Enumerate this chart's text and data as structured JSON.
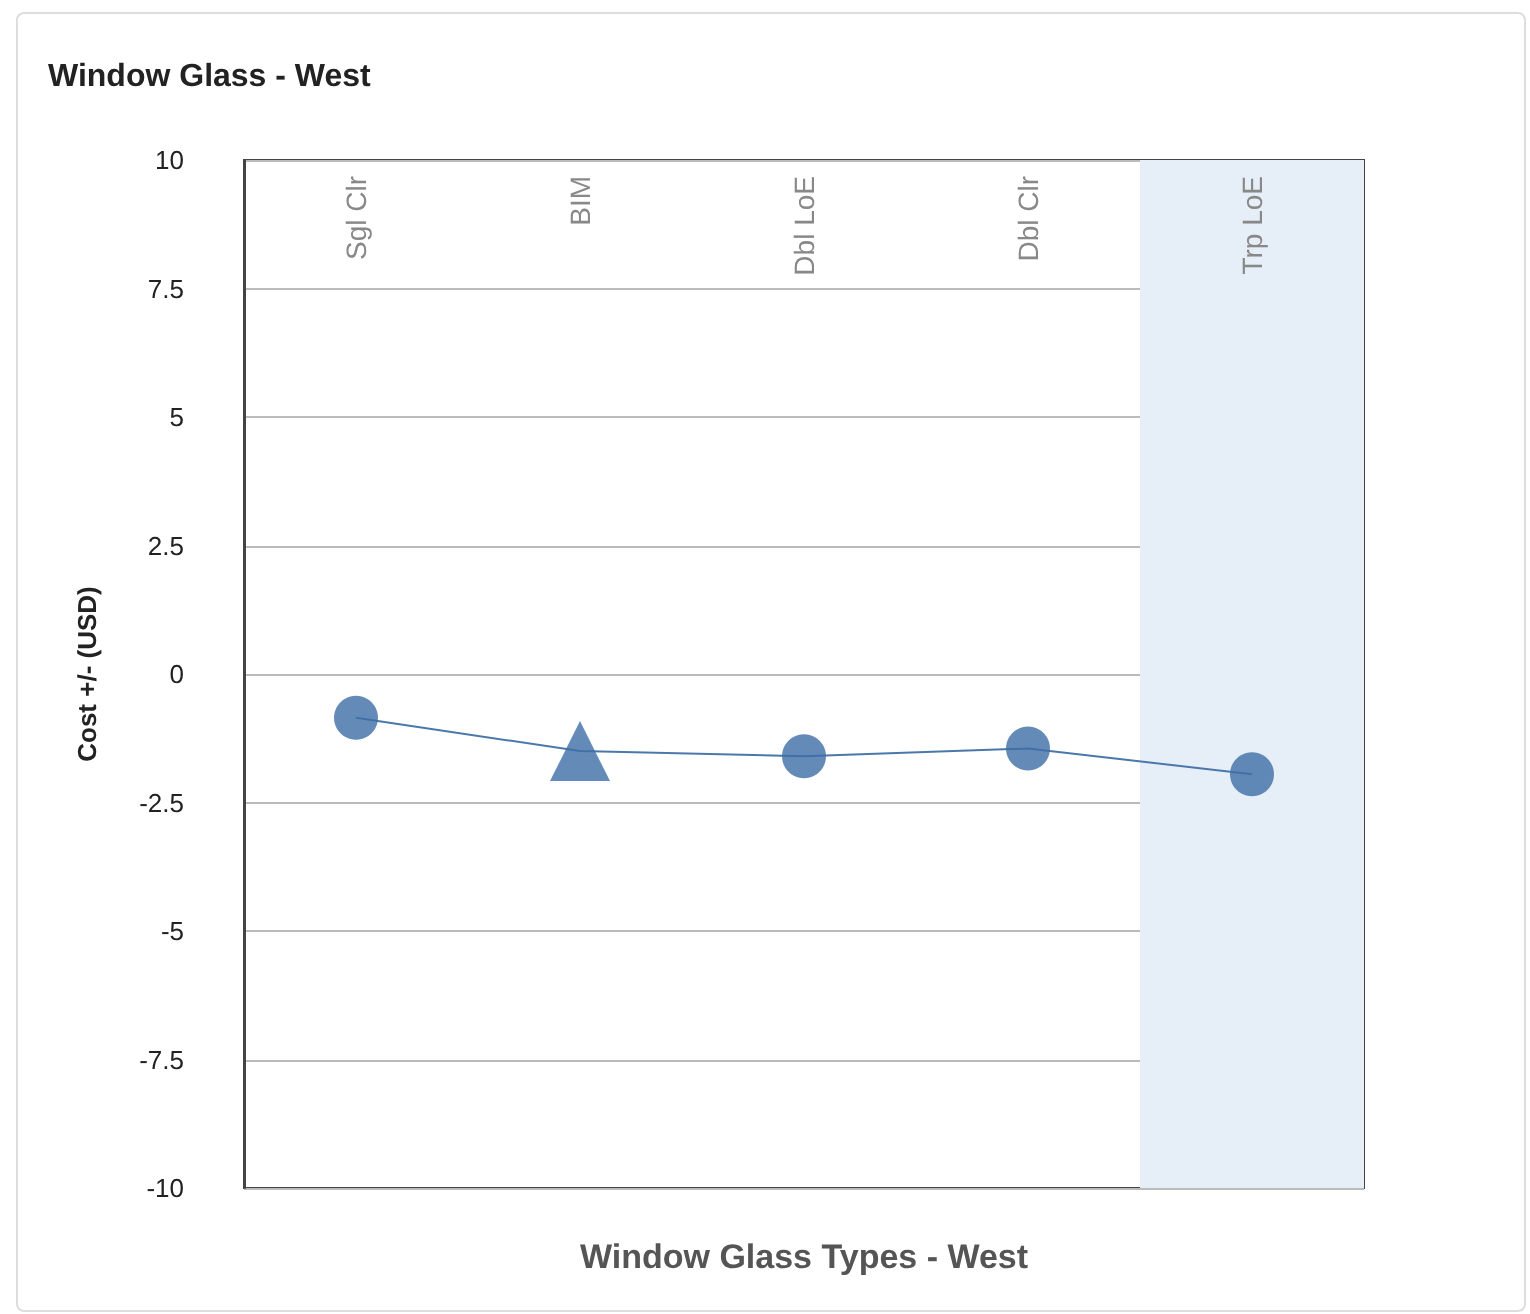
{
  "chart_data": {
    "type": "line",
    "title": "Window Glass - West",
    "xlabel": "Window Glass Types - West",
    "ylabel": "Cost +/- (USD)",
    "categories": [
      "Sgl Clr",
      "BIM",
      "Dbl LoE",
      "Dbl Clr",
      "Trp LoE"
    ],
    "series": [
      {
        "color": "#4a78aa",
        "marker": "none",
        "values": [
          -0.85,
          -1.5,
          -1.6,
          -1.45,
          -1.95
        ]
      },
      {
        "type": "scatter",
        "color": "#3d6ea5",
        "marker": "circle",
        "values": [
          -0.85,
          null,
          -1.6,
          -1.45,
          -1.95
        ]
      },
      {
        "type": "scatter",
        "color": "#3d6ea5",
        "marker": "triangle",
        "values": [
          null,
          -1.5,
          null,
          null,
          null
        ]
      }
    ],
    "ylim": [
      -10,
      10
    ],
    "yticks": [
      -10,
      -7.5,
      -5,
      -2.5,
      0,
      2.5,
      5,
      7.5,
      10
    ],
    "grid": "y",
    "bands": [
      {
        "axis": "x",
        "from": "Trp LoE",
        "to": "Trp LoE",
        "color": "#e6eef7"
      }
    ]
  }
}
